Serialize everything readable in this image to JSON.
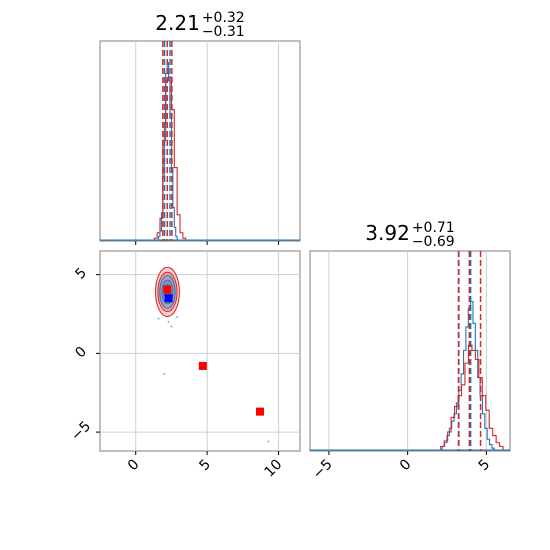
{
  "chart_data": [
    {
      "type": "histogram",
      "panel": "top-left",
      "title": {
        "value": "2.21",
        "plus": "+0.32",
        "minus": "−0.31"
      },
      "xlim": [
        -2.5,
        11.5
      ],
      "xticks": [
        0,
        5,
        10
      ],
      "grid": true,
      "quantile_lines": {
        "red": [
          1.9,
          2.21,
          2.53
        ],
        "blue": [
          2.02,
          2.4
        ]
      },
      "series": [
        {
          "color": "#1f77b4",
          "bin_start": 1.5,
          "bin_width": 0.1,
          "counts": [
            0,
            0.02,
            0.05,
            0.15,
            0.35,
            0.65,
            0.92,
            0.98,
            0.9,
            0.7,
            0.4,
            0.18,
            0.07,
            0.02,
            0
          ]
        },
        {
          "color": "#d62728",
          "bin_start": 1.3,
          "bin_width": 0.2,
          "counts": [
            0.01,
            0.04,
            0.12,
            0.55,
            0.88,
            0.9,
            0.72,
            0.4,
            0.14,
            0.04,
            0.01
          ]
        }
      ]
    },
    {
      "type": "scatter",
      "panel": "bottom-left",
      "xlim": [
        -2.5,
        11.5
      ],
      "ylim": [
        -6.2,
        6.5
      ],
      "xticks": [
        0,
        5,
        10
      ],
      "yticks": [
        5,
        0,
        -5
      ],
      "xtick_labels": [
        "0",
        "5",
        "10"
      ],
      "ytick_labels": [
        "5",
        "0",
        "−5"
      ],
      "grid": true,
      "contours": {
        "center": [
          2.22,
          3.9
        ],
        "red_sigma": [
          0.42,
          0.78
        ],
        "blue_sigma": [
          0.3,
          0.58
        ]
      },
      "markers": [
        {
          "color": "#ff0000",
          "x": 2.2,
          "y": 4.05
        },
        {
          "color": "#0000ff",
          "x": 2.3,
          "y": 3.5
        },
        {
          "color": "#ff0000",
          "x": 4.7,
          "y": -0.8
        },
        {
          "color": "#ff0000",
          "x": 8.7,
          "y": -3.7
        }
      ],
      "outliers": [
        {
          "x": 2.3,
          "y": 2.0
        },
        {
          "x": 2.5,
          "y": 1.7
        },
        {
          "x": 1.6,
          "y": 2.2
        },
        {
          "x": 2.9,
          "y": 2.3
        },
        {
          "x": 2.0,
          "y": -1.3
        },
        {
          "x": 9.3,
          "y": -5.6
        }
      ]
    },
    {
      "type": "histogram",
      "panel": "bottom-right",
      "title": {
        "value": "3.92",
        "plus": "+0.71",
        "minus": "−0.69"
      },
      "xlim": [
        -6.2,
        6.5
      ],
      "xticks": [
        -5,
        0,
        5
      ],
      "xtick_labels": [
        "−5",
        "0",
        "5"
      ],
      "grid": true,
      "quantile_lines": {
        "red": [
          3.23,
          3.92,
          4.63
        ],
        "blue": [
          3.25,
          4.0
        ]
      },
      "series": [
        {
          "color": "#1f77b4",
          "bin_start": 2.2,
          "bin_width": 0.15,
          "counts": [
            0.02,
            0.04,
            0.08,
            0.12,
            0.16,
            0.2,
            0.26,
            0.33,
            0.42,
            0.55,
            0.68,
            0.78,
            0.82,
            0.7,
            0.55,
            0.4,
            0.3,
            0.2,
            0.12,
            0.06,
            0.03,
            0.01
          ]
        },
        {
          "color": "#d62728",
          "bin_start": 2.1,
          "bin_width": 0.22,
          "counts": [
            0.02,
            0.05,
            0.1,
            0.18,
            0.24,
            0.3,
            0.36,
            0.48,
            0.58,
            0.55,
            0.5,
            0.4,
            0.3,
            0.22,
            0.12,
            0.08,
            0.04,
            0.02
          ]
        }
      ]
    }
  ]
}
